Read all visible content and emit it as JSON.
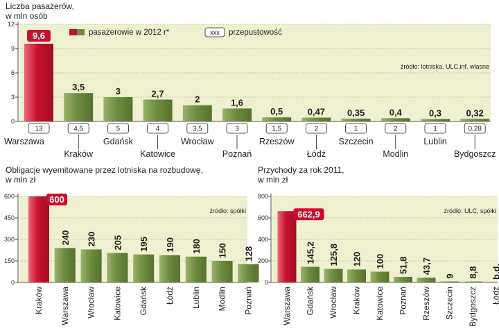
{
  "chart_data": [
    {
      "id": "passengers",
      "type": "bar",
      "title_lines": [
        "Liczba pasażerów,",
        "w mln osób"
      ],
      "y_ticks": [
        0,
        3,
        6,
        9,
        12
      ],
      "ylim": [
        0,
        12
      ],
      "source": "źródło: lotniska, ULC,inf. własne",
      "legend": {
        "series_label": "pasażerowie w 2012 r*",
        "capacity_box": "xxx",
        "capacity_label": "przepustowość"
      },
      "categories": [
        "Warszawa",
        "Kraków",
        "Gdańsk",
        "Katowice",
        "Wrocław",
        "Poznań",
        "Rzeszów",
        "Łódź",
        "Szczecin",
        "Modlin",
        "Lublin",
        "Bydgoszcz"
      ],
      "value_labels": [
        "9,6",
        "3,5",
        "3",
        "2,7",
        "2",
        "1,6",
        "0,5",
        "0,47",
        "0,35",
        "0,4",
        "0,3",
        "0,32"
      ],
      "values": [
        9.6,
        3.5,
        3.0,
        2.7,
        2.0,
        1.6,
        0.5,
        0.47,
        0.35,
        0.4,
        0.3,
        0.32
      ],
      "capacity": [
        "13",
        "4,5",
        "5",
        "4",
        "3,5",
        "3",
        "1,5",
        "2",
        "1",
        "2",
        "1",
        "0,28"
      ],
      "highlight_index": 0
    },
    {
      "id": "bonds",
      "type": "bar",
      "title_lines": [
        "Obligacje wyemitowane przez lotniska na rozbudowę,",
        "w mln zł"
      ],
      "y_ticks": [
        0,
        150,
        300,
        450,
        600
      ],
      "ylim": [
        0,
        600
      ],
      "source": "źródło: spółki",
      "categories": [
        "Kraków",
        "Warszawa",
        "Wrocław",
        "Katowice",
        "Gdańsk",
        "Łódź",
        "Lublin",
        "Modlin",
        "Poznań"
      ],
      "value_labels": [
        "600",
        "240",
        "230",
        "205",
        "195",
        "190",
        "180",
        "150",
        "128"
      ],
      "values": [
        600,
        240,
        230,
        205,
        195,
        190,
        180,
        150,
        128
      ],
      "highlight_index": 0
    },
    {
      "id": "revenue",
      "type": "bar",
      "title_lines": [
        "Przychody za rok 2011,",
        "w mln zł"
      ],
      "y_ticks": [
        0,
        200,
        400,
        600,
        800
      ],
      "ylim": [
        0,
        800
      ],
      "source": "źródło: ULC, spółki",
      "categories": [
        "Warszawa",
        "Gdańsk",
        "Wrocław",
        "Kraków",
        "Katowice",
        "Poznań",
        "Rzeszów",
        "Szczecin",
        "Bydgoszcz",
        "Łódź"
      ],
      "value_labels": [
        "662,9",
        "145,2",
        "125,8",
        "120",
        "100",
        "51,8",
        "43,7",
        "9",
        "8,8",
        "b.d."
      ],
      "values": [
        662.9,
        145.2,
        125.8,
        120,
        100,
        51.8,
        43.7,
        9,
        8.8,
        null
      ],
      "highlight_index": 0
    }
  ],
  "colors": {
    "panel_bg": "#eef0cf",
    "bar_green": "#6d8d3f",
    "bar_green_light": "#9bb26c",
    "bar_red": "#c8102e",
    "bar_red_light": "#ee6677",
    "text": "#231f20",
    "grid": "#8a8a6a"
  }
}
